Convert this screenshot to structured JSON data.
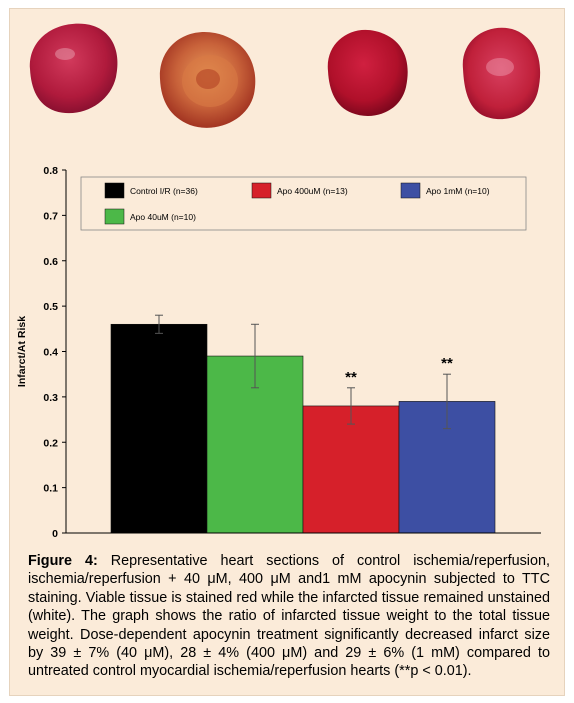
{
  "chart_data": {
    "type": "bar",
    "ylabel": "Infarct/At Risk",
    "xlabel": "",
    "ylim": [
      0,
      0.8
    ],
    "yticks": [
      "0",
      "0.1",
      "0.2",
      "0.3",
      "0.4",
      "0.5",
      "0.6",
      "0.7",
      "0.8"
    ],
    "grid": false,
    "legend_position": "top",
    "bars": [
      {
        "name": "Control I/R (n=36)",
        "value": 0.46,
        "error": 0.02,
        "color": "#000000",
        "sig": ""
      },
      {
        "name": "Apo 40uM (n=10)",
        "value": 0.39,
        "error": 0.07,
        "color": "#4cb848",
        "sig": ""
      },
      {
        "name": "Apo 400uM (n=13)",
        "value": 0.28,
        "error": 0.04,
        "color": "#d6202a",
        "sig": "**"
      },
      {
        "name": "Apo 1mM (n=10)",
        "value": 0.29,
        "error": 0.06,
        "color": "#3d4fa3",
        "sig": "**"
      }
    ]
  },
  "caption": {
    "label": "Figure 4:",
    "text": "Representative heart sections of control ischemia/reperfusion, ischemia/reperfusion + 40 μM, 400 μM and1 mM apocynin subjected to TTC staining. Viable tissue is stained red while the infarcted tissue remained unstained (white). The graph shows the ratio of infarcted tissue weight to the total tissue weight. Dose-dependent apocynin treatment significantly decreased infarct size by 39 ± 7% (40 μM), 28 ± 4% (400 μM) and 29 ± 6% (1 mM) compared to untreated control myocardial ischemia/reperfusion hearts (**p < 0.01)."
  },
  "colors": {
    "panel_background": "#fbebd9",
    "heart_colors": [
      "#b01a3c",
      "#c2502a",
      "#b0102a",
      "#c0203a"
    ]
  }
}
